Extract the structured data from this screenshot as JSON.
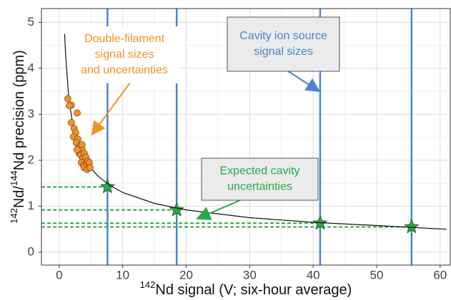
{
  "chart_data": {
    "type": "line",
    "x_label_parts": [
      "142",
      "Nd signal (V; six-hour average)"
    ],
    "y_label_parts": [
      "142",
      "Nd/",
      "144",
      "Nd precision (ppm)"
    ],
    "xlim": [
      -2.8,
      61.6
    ],
    "ylim": [
      -0.28,
      5.3
    ],
    "xticks": [
      0,
      10,
      20,
      30,
      40,
      50,
      60
    ],
    "yticks": [
      0,
      1,
      2,
      3,
      4,
      5
    ],
    "grid": true,
    "minor_grid": true,
    "series": [
      {
        "type": "line",
        "color": "#111111",
        "x": [
          0.85,
          1,
          1.5,
          2,
          3,
          4,
          5,
          6,
          8,
          10,
          15,
          20,
          30,
          40,
          50,
          61
        ],
        "values": [
          4.75,
          4.3,
          3.35,
          2.9,
          2.37,
          2.05,
          1.83,
          1.67,
          1.45,
          1.3,
          1.06,
          0.92,
          0.75,
          0.65,
          0.58,
          0.5
        ]
      },
      {
        "type": "scatter",
        "color": "#f0922b",
        "x": [
          1.35,
          1.91,
          1.58,
          2.82,
          1.91,
          2.36,
          2.59,
          2.25,
          2.93,
          2.7,
          3.27,
          3.04,
          3.6,
          3.15,
          3.38,
          3.94,
          3.72,
          4.05,
          3.49,
          3.83,
          4.28,
          3.94,
          4.39,
          3.6,
          4.17,
          4.5,
          2.82,
          4.73,
          4.84
        ],
        "values": [
          3.34,
          3.2,
          3.19,
          3.03,
          2.82,
          2.69,
          2.6,
          2.51,
          2.46,
          2.38,
          2.31,
          2.26,
          2.23,
          2.15,
          2.11,
          2.15,
          2.04,
          2.0,
          1.95,
          1.89,
          1.92,
          1.84,
          1.8,
          2.34,
          2.07,
          1.98,
          2.23,
          1.95,
          1.84
        ]
      },
      {
        "type": "star",
        "color": "#2aa84a",
        "vline_color": "#4a86c8",
        "dropline": true,
        "x": [
          7.6,
          18.5,
          41.1,
          55.5
        ],
        "values": [
          1.42,
          0.92,
          0.63,
          0.55
        ]
      }
    ],
    "annotations": [
      {
        "lines": [
          "Double-filament",
          "signal sizes",
          "and uncertainties"
        ],
        "color": "#f0922b",
        "boxed": false
      },
      {
        "lines": [
          "Cavity ion source",
          "signal sizes"
        ],
        "color": "#4a86c8",
        "boxed": true
      },
      {
        "lines": [
          "Expected cavity",
          "uncertainties"
        ],
        "color": "#2aa84a",
        "boxed": true
      }
    ]
  }
}
